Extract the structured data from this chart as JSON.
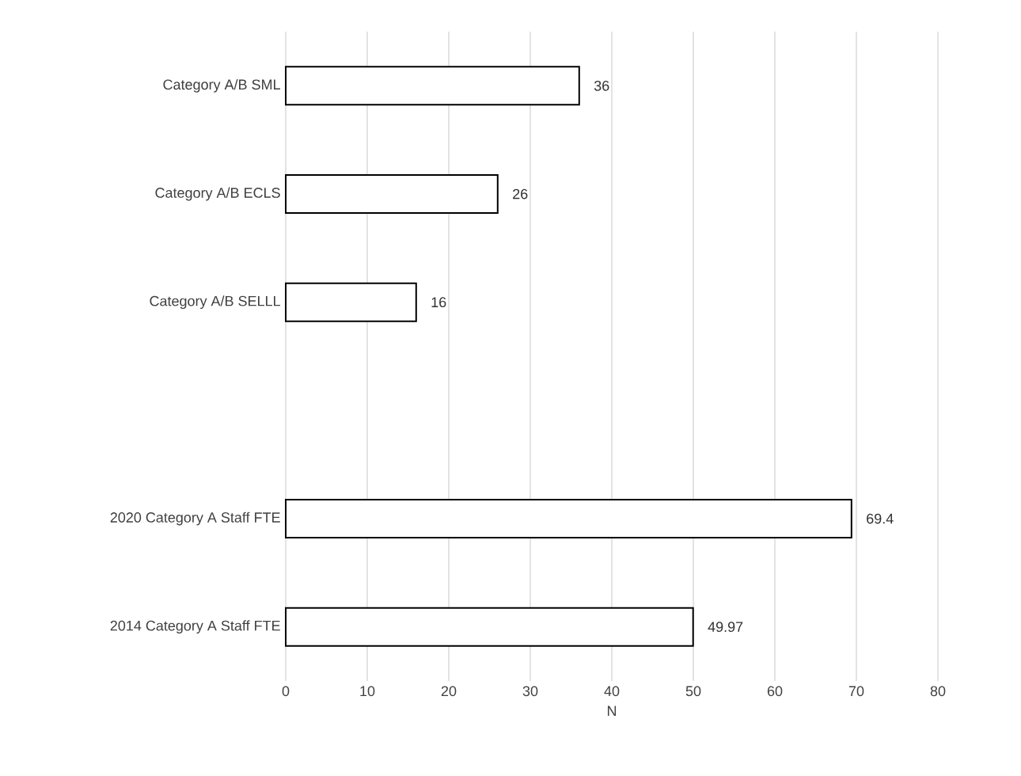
{
  "chart_data": {
    "type": "bar",
    "orientation": "horizontal",
    "xlabel": "N",
    "categories": [
      "Category A/B SML",
      "Category A/B ECLS",
      "Category A/B SELLL",
      null,
      "2020 Category A Staff FTE",
      "2014 Category A Staff FTE"
    ],
    "values": [
      36,
      26,
      16,
      null,
      69.4,
      49.97
    ],
    "colors": [
      "#000000",
      "#000000",
      "#000000",
      "#000000",
      "#000000",
      "#000000"
    ],
    "data_labels": true,
    "xlim": [
      0,
      80
    ],
    "xticks": [
      0,
      10,
      20,
      30,
      40,
      50,
      60,
      70,
      80
    ],
    "grid": "x"
  }
}
